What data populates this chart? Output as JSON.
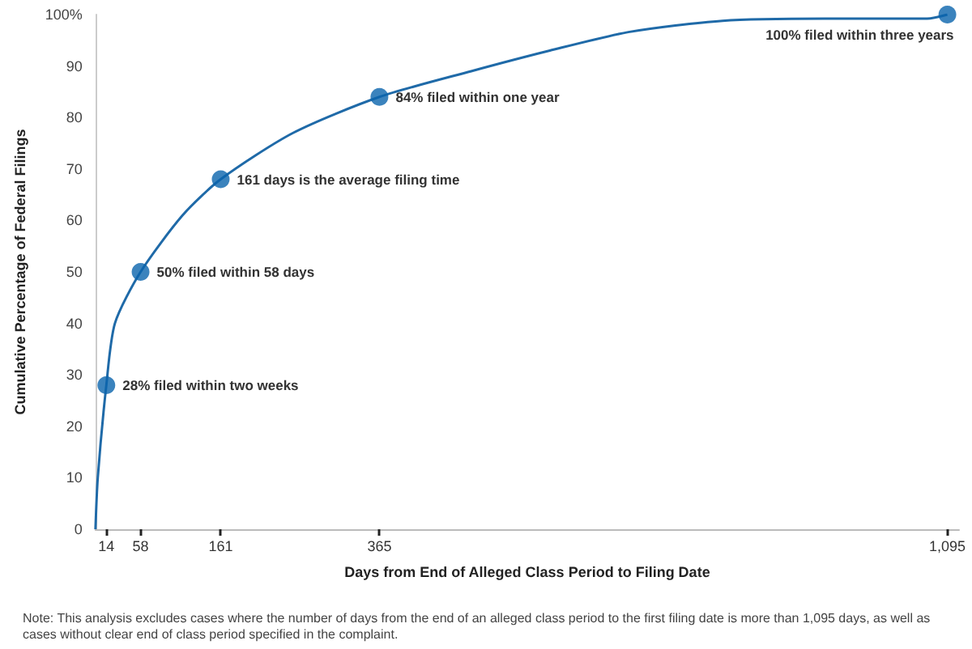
{
  "chart_data": {
    "type": "line",
    "xlabel": "Days from End of Alleged Class Period to Filing Date",
    "ylabel": "Cumulative Percentage of Federal Filings",
    "series": [
      {
        "color": "#1f6aa8",
        "x": [
          0,
          3,
          14,
          25,
          58,
          112,
          161,
          254,
          365,
          483,
          584,
          685,
          806,
          953,
          1069,
          1095
        ],
        "values": [
          0,
          10,
          28,
          40,
          50,
          61,
          68,
          77,
          84,
          89,
          93,
          96.6,
          98.8,
          99.2,
          99.2,
          100
        ],
        "marker": "none"
      },
      {
        "type": "scatter",
        "color": "#0a64ad",
        "x": [
          14,
          58,
          161,
          365,
          1095
        ],
        "values": [
          28,
          50,
          68,
          84,
          100
        ],
        "marker": "circle"
      }
    ],
    "annotations": [
      {
        "text": "28% filed within two weeks",
        "x": 14,
        "y": 28
      },
      {
        "text": "50% filed within 58 days",
        "x": 58,
        "y": 50
      },
      {
        "text": "161 days is the average filing time",
        "x": 161,
        "y": 68
      },
      {
        "text": "84% filed within one year",
        "x": 365,
        "y": 84
      },
      {
        "text": "100% filed within three years",
        "x": 1095,
        "y": 100
      },
      "Note: This analysis excludes cases where the number of days from the end of an alleged class period to the first filing date is more than 1,095 days, as well as cases without clear end of class period specified in the complaint."
    ],
    "xlim": [
      0,
      1110
    ],
    "xticks": [
      14,
      58,
      161,
      365,
      {
        "value": 1095,
        "label": "1,095"
      }
    ],
    "ylim": [
      0,
      100
    ],
    "yticks": [
      0,
      10,
      20,
      30,
      40,
      50,
      60,
      70,
      80,
      90,
      {
        "value": 100,
        "label": "100%"
      }
    ],
    "grid": false
  }
}
